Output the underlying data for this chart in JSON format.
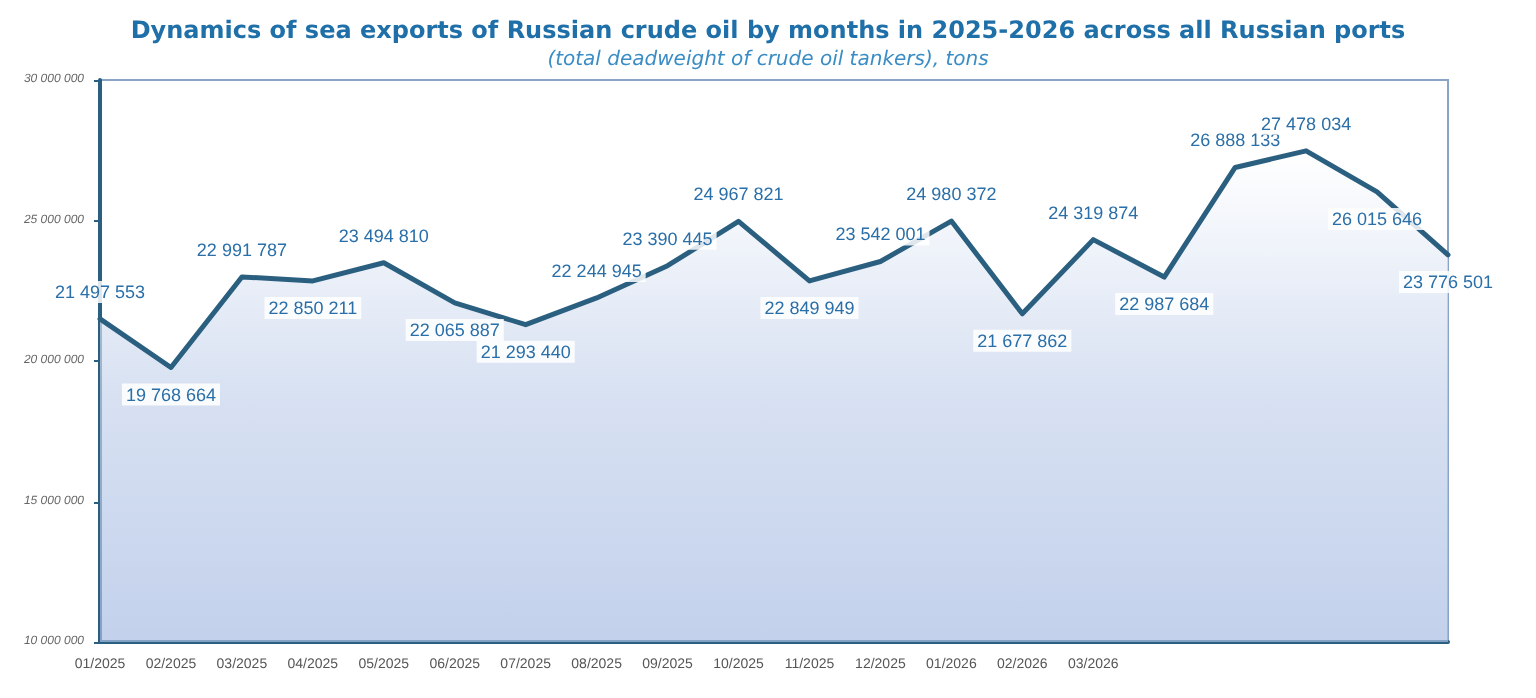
{
  "chart_data": {
    "type": "area",
    "title": "Dynamics of sea exports of Russian crude oil by months in 2025-2026 across all Russian ports",
    "subtitle": "(total deadweight of crude oil tankers), tons",
    "categories": [
      "01/2025",
      "02/2025",
      "03/2025",
      "04/2025",
      "05/2025",
      "06/2025",
      "07/2025",
      "08/2025",
      "09/2025",
      "10/2025",
      "11/2025",
      "12/2025",
      "01/2026",
      "02/2026",
      "03/2026",
      null,
      null,
      null,
      null,
      null
    ],
    "series": [
      {
        "color": "#2b5f80",
        "values": [
          21497553,
          19768664,
          22991787,
          22850211,
          23494810,
          22065887,
          21293440,
          22244945,
          23390445,
          24967821,
          22849949,
          23542001,
          24980372,
          21677862,
          24319874,
          22987684,
          26888133,
          27478034,
          26015646,
          23776501
        ],
        "value_labels": [
          "21 497 553",
          "19 768 664",
          "22 991 787",
          "22 850 211",
          "23 494 810",
          "22 065 887",
          "21 293 440",
          "22 244 945",
          "23 390 445",
          "24 967 821",
          "22 849 949",
          "23 542 001",
          "24 980 372",
          "21 677 862",
          "24 319 874",
          "22 987 684",
          "26 888 133",
          "27 478 034",
          "26 015 646",
          "23 776 501"
        ]
      }
    ],
    "ylim": [
      10000000,
      30000000
    ],
    "yticks": [
      {
        "value": 10000000,
        "label": "10 000 000"
      },
      {
        "value": 15000000,
        "label": "15 000 000"
      },
      {
        "value": 20000000,
        "label": "20 000 000"
      },
      {
        "value": 25000000,
        "label": "25 000 000"
      },
      {
        "value": 30000000,
        "label": "30 000 000"
      }
    ],
    "grid": false,
    "marker": "none",
    "line_style": "solid"
  }
}
